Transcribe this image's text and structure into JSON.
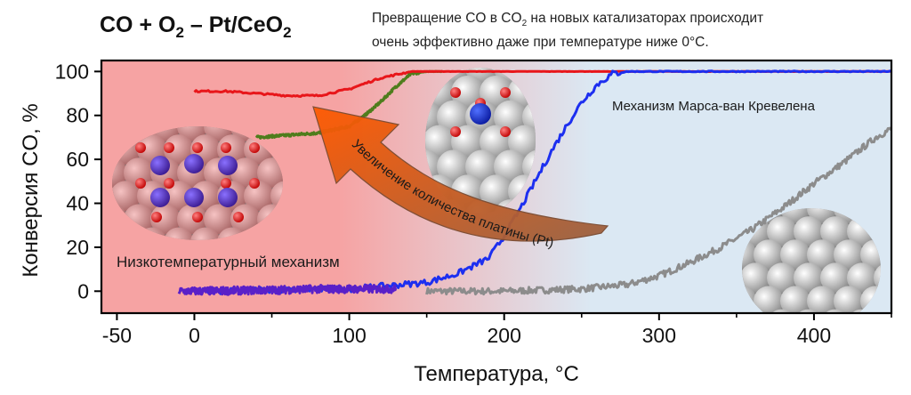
{
  "title_parts": [
    "CO + O",
    "2",
    " – Pt/CeO",
    "2"
  ],
  "subtitle_parts": [
    "Превращение CO в CO",
    "2",
    " на новых катализаторах происходит",
    "очень эффективно даже при температуре ниже 0°С."
  ],
  "colors": {
    "low_region": "#f6a3a3",
    "mid_region": "#dbe8f3",
    "red": "#e8161a",
    "green": "#4f7d1c",
    "blue": "#1d2ff0",
    "purple": "#5a20c8",
    "gray": "#8c8c8c",
    "arrow_start": "#9a6040",
    "arrow_end": "#ff5a00"
  },
  "annotations": {
    "low_temp": "Низкотемпературный механизм",
    "mars": "Механизм Марса-ван Кревелена",
    "arrow": "Увеличение количества платины (Pt)"
  },
  "illustrations": [
    "Pt/CeO2 surface model, high Pt",
    "single Pt atom on CeO2",
    "bare CeO2 surface"
  ],
  "chart_data": {
    "type": "line",
    "xlabel": "Температура, °С",
    "ylabel": "Конверсия CO, %",
    "xlim": [
      -60,
      450
    ],
    "ylim": [
      -10,
      105
    ],
    "xticks": [
      -50,
      0,
      100,
      200,
      300,
      400
    ],
    "yticks": [
      0,
      20,
      40,
      60,
      80,
      100
    ],
    "series": [
      {
        "id": "red",
        "color": "#e8161a",
        "x": [
          0,
          20,
          40,
          60,
          80,
          100,
          120,
          140,
          150,
          160,
          200,
          300,
          450
        ],
        "y": [
          91,
          91,
          90,
          89,
          89,
          92,
          97,
          100,
          100,
          100,
          100,
          100,
          100
        ]
      },
      {
        "id": "green",
        "color": "#4f7d1c",
        "x": [
          40,
          60,
          80,
          100,
          110,
          120,
          130,
          140,
          150,
          160
        ],
        "y": [
          70,
          71,
          72,
          75,
          80,
          86,
          93,
          99,
          100,
          100
        ]
      },
      {
        "id": "blue",
        "color": "#1d2ff0",
        "x": [
          0,
          50,
          100,
          150,
          170,
          190,
          200,
          210,
          220,
          230,
          240,
          250,
          260,
          270,
          280,
          300,
          450
        ],
        "y": [
          0,
          0.5,
          1,
          4,
          8,
          15,
          25,
          37,
          50,
          63,
          75,
          86,
          94,
          99,
          100,
          100,
          100
        ]
      },
      {
        "id": "purple",
        "color": "#5a20c8",
        "x": [
          -10,
          0,
          50,
          80,
          110,
          130
        ],
        "y": [
          0,
          0,
          0.5,
          1,
          1,
          1
        ]
      },
      {
        "id": "gray",
        "color": "#8c8c8c",
        "x": [
          150,
          200,
          250,
          280,
          300,
          320,
          340,
          360,
          380,
          400,
          420,
          440,
          450
        ],
        "y": [
          0,
          0,
          1,
          3,
          7,
          13,
          20,
          28,
          38,
          49,
          59,
          70,
          74
        ]
      }
    ]
  }
}
